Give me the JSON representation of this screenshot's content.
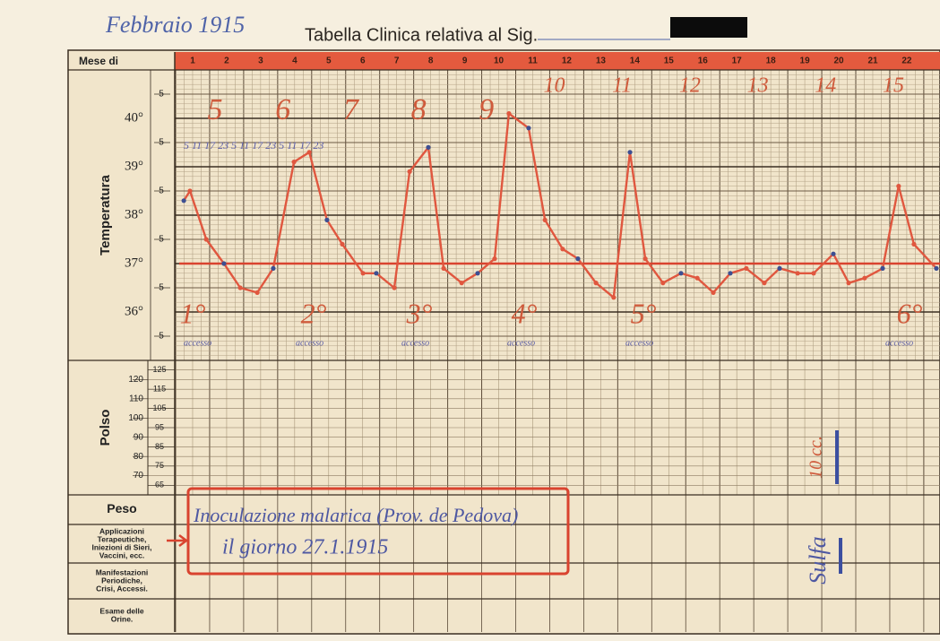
{
  "header": {
    "note": "Febbraio 1915",
    "title": "Tabella Clinica relativa al Sig."
  },
  "month_label": "Mese di",
  "days": [
    1,
    2,
    3,
    4,
    5,
    6,
    7,
    8,
    9,
    10,
    11,
    12,
    13,
    14,
    15,
    16,
    17,
    18,
    19,
    20,
    21,
    22
  ],
  "temperature": {
    "label": "Temperatura",
    "ylim": [
      35,
      41
    ],
    "ticks": [
      {
        "value": 40,
        "label": "40°"
      },
      {
        "value": 39,
        "label": "39°"
      },
      {
        "value": 38,
        "label": "38°"
      },
      {
        "value": 37,
        "label": "37°"
      },
      {
        "value": 36,
        "label": "36°"
      }
    ],
    "half_ticks": [
      {
        "value": 40.5,
        "label": "5"
      },
      {
        "value": 39.5,
        "label": "5"
      },
      {
        "value": 38.5,
        "label": "5"
      },
      {
        "value": 37.5,
        "label": "5"
      },
      {
        "value": 36.5,
        "label": "5"
      },
      {
        "value": 35.5,
        "label": "5"
      }
    ],
    "reference_line": 37,
    "readings": {
      "x": [
        0.74,
        0.92,
        1.4,
        1.92,
        2.4,
        2.9,
        3.37,
        3.98,
        4.43,
        4.95,
        5.4,
        6.01,
        6.4,
        6.93,
        7.38,
        7.93,
        8.38,
        8.91,
        9.38,
        9.88,
        10.3,
        10.88,
        11.36,
        11.88,
        12.33,
        12.86,
        13.38,
        13.86,
        14.31,
        14.83,
        15.36,
        15.84,
        16.31,
        16.81,
        17.28,
        17.81,
        18.26,
        18.79,
        19.26,
        19.84,
        20.29,
        20.76,
        21.29,
        21.76,
        22.21,
        22.87
      ],
      "values": [
        38.3,
        38.5,
        37.5,
        37.0,
        36.5,
        36.4,
        36.9,
        39.1,
        39.3,
        37.9,
        37.4,
        36.8,
        36.8,
        36.5,
        38.9,
        39.4,
        36.9,
        36.6,
        36.8,
        37.1,
        40.1,
        39.8,
        37.9,
        37.3,
        37.1,
        36.6,
        36.3,
        39.3,
        37.1,
        36.6,
        36.8,
        36.7,
        36.4,
        36.8,
        36.9,
        36.6,
        36.9,
        36.8,
        36.8,
        37.2,
        36.6,
        36.7,
        36.9,
        38.6,
        37.4,
        36.9
      ]
    }
  },
  "pulse": {
    "label": "Polso",
    "ylim": [
      60,
      130
    ],
    "ticks": [
      120,
      110,
      100,
      90,
      80,
      70
    ],
    "inner_ticks": [
      125,
      115,
      105,
      95,
      85,
      75,
      65
    ]
  },
  "rows": [
    {
      "lines": [
        "Peso"
      ]
    },
    {
      "lines": [
        "Applicazioni",
        "Terapeutiche,",
        "Iniezioni di Sieri,",
        "Vaccini, ecc."
      ]
    },
    {
      "lines": [
        "Manifestazioni",
        "Periodiche,",
        "Crisi, Accessi."
      ]
    },
    {
      "lines": [
        "Esame delle",
        "Orine."
      ]
    }
  ],
  "annotations": {
    "illness_days": [
      "5",
      "6",
      "7",
      "8",
      "9",
      "10",
      "11",
      "12",
      "13",
      "14",
      "15"
    ],
    "hours": "5 11 17 23 5 11 17 23 5 11 17 23",
    "accessi": [
      {
        "number": "1°",
        "text": "accesso"
      },
      {
        "number": "2°",
        "text": "accesso"
      },
      {
        "number": "3°",
        "text": "accesso"
      },
      {
        "number": "4°",
        "text": "accesso"
      },
      {
        "number": "5°",
        "text": "accesso"
      },
      {
        "number": "6°",
        "text": "accesso"
      }
    ],
    "inoculation": [
      "Inoculazione malarica (Prov. de Pedova)",
      "il giorno 27.1.1915"
    ],
    "side_note": [
      "Sulfa",
      "10 cc."
    ]
  }
}
